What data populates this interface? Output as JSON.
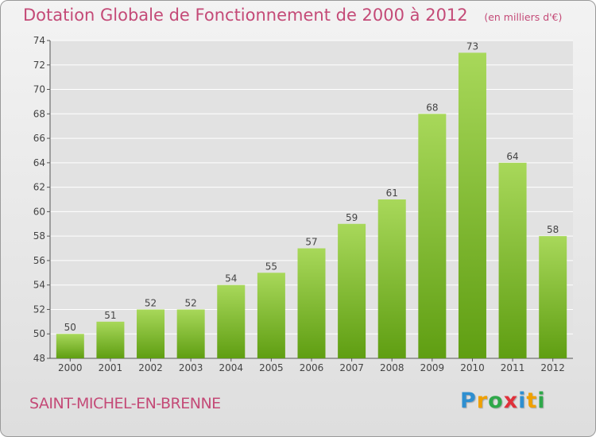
{
  "title": "Dotation Globale de Fonctionnement de 2000 à 2012",
  "unit": "(en milliers d'€)",
  "commune": "SAINT-MICHEL-EN-BRENNE",
  "logo": {
    "letters": [
      "P",
      "r",
      "o",
      "x",
      "i",
      "t",
      "i"
    ],
    "colors": [
      "#2f8fd0",
      "#f0a000",
      "#2fa84a",
      "#e0303a",
      "#2f8fd0",
      "#f0a000",
      "#2fa84a"
    ]
  },
  "colors": {
    "bar_light": "#a8d85a",
    "bar_dark": "#5f9e12",
    "grid": "#ffffff",
    "title": "#c44a77"
  },
  "chart_data": {
    "type": "bar",
    "title": "Dotation Globale de Fonctionnement de 2000 à 2012",
    "subtitle": "(en milliers d'€)",
    "categories": [
      "2000",
      "2001",
      "2002",
      "2003",
      "2004",
      "2005",
      "2006",
      "2007",
      "2008",
      "2009",
      "2010",
      "2011",
      "2012"
    ],
    "values": [
      50,
      51,
      52,
      52,
      54,
      55,
      57,
      59,
      61,
      68,
      73,
      64,
      58
    ],
    "ylim": [
      48,
      74
    ],
    "yticks": [
      48,
      50,
      52,
      54,
      56,
      58,
      60,
      62,
      64,
      66,
      68,
      70,
      72,
      74
    ],
    "xlabel": "",
    "ylabel": "",
    "grid": true
  }
}
